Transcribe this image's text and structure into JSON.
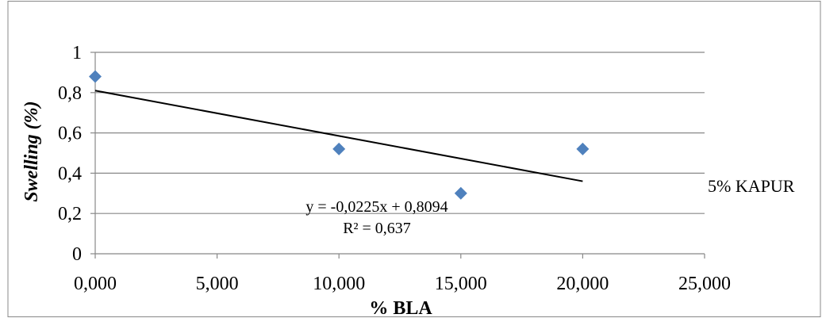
{
  "chart_data": {
    "type": "scatter",
    "title": "",
    "xlabel": "% BLA",
    "ylabel": "Swelling (%)",
    "xlim": [
      0,
      25000
    ],
    "ylim": [
      0,
      1
    ],
    "x_ticks": [
      0,
      5000,
      10000,
      15000,
      20000,
      25000
    ],
    "x_tick_labels": [
      "0,000",
      "5,000",
      "10,000",
      "15,000",
      "20,000",
      "25,000"
    ],
    "y_ticks": [
      0,
      0.2,
      0.4,
      0.6,
      0.8,
      1
    ],
    "y_tick_labels": [
      "0",
      "0,2",
      "0,4",
      "0,6",
      "0,8",
      "1"
    ],
    "grid": "horizontal",
    "legend_position": "right",
    "series": [
      {
        "name": "5% KAPUR",
        "color": "#4f81bd",
        "marker": "diamond",
        "points": [
          {
            "x": 0,
            "y": 0.88
          },
          {
            "x": 10000,
            "y": 0.52
          },
          {
            "x": 15000,
            "y": 0.3
          },
          {
            "x": 20000,
            "y": 0.52
          }
        ]
      }
    ],
    "trendline": {
      "color": "#000000",
      "x_range": [
        0,
        20000
      ],
      "y_range": [
        0.81,
        0.36
      ],
      "equation_label": "y = -0,0225x + 0,8094",
      "r2_label": "R² = 0,637"
    }
  }
}
